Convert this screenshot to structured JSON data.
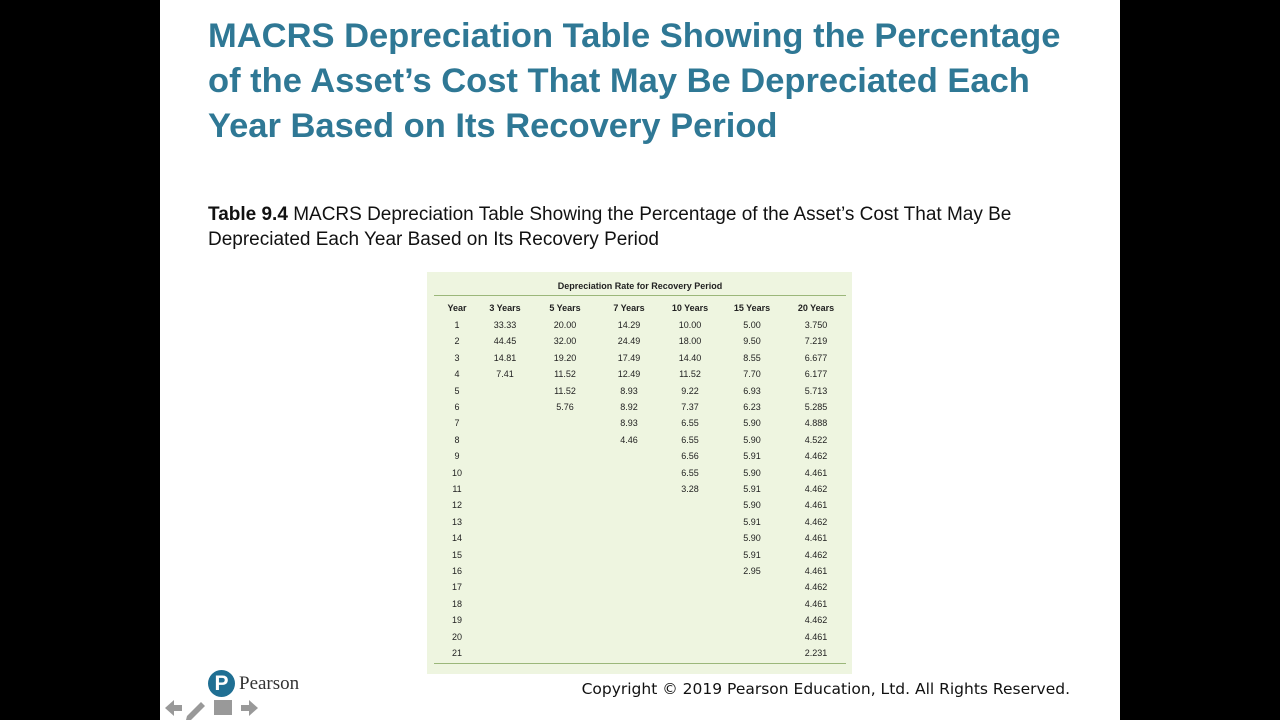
{
  "slide": {
    "title": "MACRS Depreciation Table Showing the Percentage of the Asset’s Cost That May Be Depreciated Each Year Based on Its Recovery Period",
    "caption_label": "Table 9.4",
    "caption_text": "MACRS Depreciation Table Showing the Percentage of the Asset’s Cost That May Be Depreciated Each Year Based on Its Recovery Period",
    "table": {
      "header": "Depreciation Rate for Recovery Period",
      "columns": [
        {
          "header": "Year",
          "values": [
            "1",
            "2",
            "3",
            "4",
            "5",
            "6",
            "7",
            "8",
            "9",
            "10",
            "11",
            "12",
            "13",
            "14",
            "15",
            "16",
            "17",
            "18",
            "19",
            "20",
            "21"
          ]
        },
        {
          "header": "3 Years",
          "values": [
            "33.33",
            "44.45",
            "14.81",
            "7.41"
          ]
        },
        {
          "header": "5 Years",
          "values": [
            "20.00",
            "32.00",
            "19.20",
            "11.52",
            "11.52",
            "5.76"
          ]
        },
        {
          "header": "7 Years",
          "values": [
            "14.29",
            "24.49",
            "17.49",
            "12.49",
            "8.93",
            "8.92",
            "8.93",
            "4.46"
          ]
        },
        {
          "header": "10 Years",
          "values": [
            "10.00",
            "18.00",
            "14.40",
            "11.52",
            "9.22",
            "7.37",
            "6.55",
            "6.55",
            "6.56",
            "6.55",
            "3.28"
          ]
        },
        {
          "header": "15 Years",
          "values": [
            "5.00",
            "9.50",
            "8.55",
            "7.70",
            "6.93",
            "6.23",
            "5.90",
            "5.90",
            "5.91",
            "5.90",
            "5.91",
            "5.90",
            "5.91",
            "5.90",
            "5.91",
            "2.95"
          ]
        },
        {
          "header": "20 Years",
          "values": [
            "3.750",
            "7.219",
            "6.677",
            "6.177",
            "5.713",
            "5.285",
            "4.888",
            "4.522",
            "4.462",
            "4.461",
            "4.462",
            "4.461",
            "4.462",
            "4.461",
            "4.462",
            "4.461",
            "4.462",
            "4.461",
            "4.462",
            "4.461",
            "2.231"
          ]
        }
      ]
    },
    "logo_text": "Pearson",
    "copyright": "Copyright © 2019 Pearson Education, Ltd. All Rights Reserved."
  }
}
